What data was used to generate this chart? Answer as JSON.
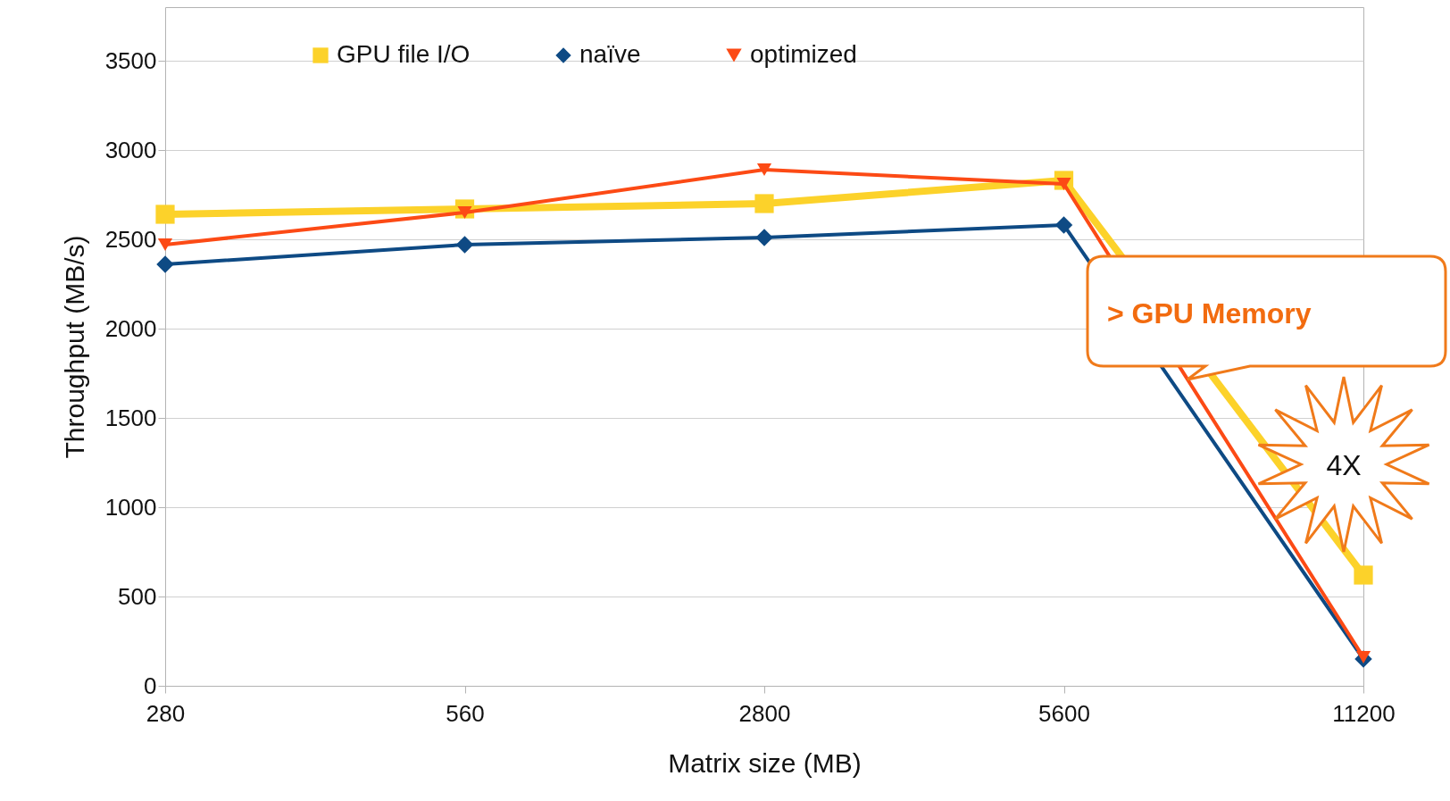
{
  "chart_data": {
    "type": "line",
    "xlabel": "Matrix size (MB)",
    "ylabel": "Throughput (MB/s)",
    "categories": [
      "280",
      "560",
      "2800",
      "5600",
      "11200"
    ],
    "ylim": [
      0,
      3800
    ],
    "yticks": [
      0,
      500,
      1000,
      1500,
      2000,
      2500,
      3000,
      3500
    ],
    "grid": "y",
    "legend": "top",
    "series": [
      {
        "name": "GPU file I/O",
        "color": "#fcd22a",
        "marker": "square",
        "values": [
          2640,
          2670,
          2700,
          2830,
          620
        ]
      },
      {
        "name": "naïve",
        "color": "#0e4a84",
        "marker": "diamond",
        "values": [
          2360,
          2470,
          2510,
          2580,
          150
        ]
      },
      {
        "name": "optimized",
        "color": "#fc4a15",
        "marker": "triangle",
        "values": [
          2470,
          2650,
          2890,
          2810,
          160
        ]
      }
    ],
    "annotations": [
      "> GPU Memory",
      "4X"
    ]
  }
}
